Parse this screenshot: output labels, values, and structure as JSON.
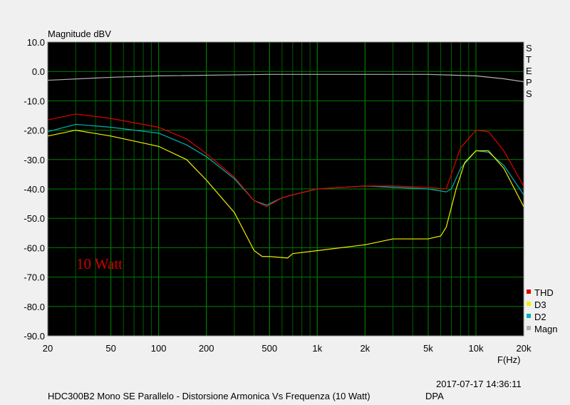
{
  "chart_data": {
    "type": "line",
    "y_label": "Magnitude dBV",
    "x_label": "F(Hz)",
    "side_label": "STEPS",
    "annotation": "10 Watt",
    "timestamp": "2017-07-17 14:36:11",
    "footer_title": "HDC300B2 Mono SE Parallelo - Distorsione Armonica Vs Frequenza (10 Watt)",
    "footer_right": "DPA",
    "x_scale": "log",
    "grid": true,
    "legend": "lower right",
    "xlim": [
      20,
      20000
    ],
    "ylim": [
      -90,
      10
    ],
    "xticks": [
      20,
      50,
      100,
      200,
      500,
      {
        "value": 1000,
        "label": "1k"
      },
      {
        "value": 2000,
        "label": "2k"
      },
      {
        "value": 5000,
        "label": "5k"
      },
      {
        "value": 10000,
        "label": "10k"
      },
      {
        "value": 20000,
        "label": "20k"
      }
    ],
    "yticks": [
      {
        "value": 10,
        "label": "10.0"
      },
      {
        "value": 0,
        "label": "0.0"
      },
      {
        "value": -10,
        "label": "-10.0"
      },
      {
        "value": -20,
        "label": "-20.0"
      },
      {
        "value": -30,
        "label": "-30.0"
      },
      {
        "value": -40,
        "label": "-40.0"
      },
      {
        "value": -50,
        "label": "-50.0"
      },
      {
        "value": -60,
        "label": "-60.0"
      },
      {
        "value": -70,
        "label": "-70.0"
      },
      {
        "value": -80,
        "label": "-80.0"
      },
      {
        "value": -90,
        "label": "-90.0"
      }
    ],
    "series": [
      {
        "name": "THD",
        "color": "#e00000",
        "x": [
          20,
          30,
          50,
          100,
          150,
          200,
          300,
          400,
          480,
          600,
          700,
          1000,
          2000,
          3000,
          5000,
          6500,
          8000,
          10000,
          12000,
          15000,
          20000
        ],
        "values": [
          -16.5,
          -14.5,
          -16,
          -19,
          -23,
          -28,
          -36,
          -44,
          -46,
          -43,
          -42,
          -40,
          -39,
          -39,
          -39.5,
          -40,
          -26,
          -20,
          -20.5,
          -27,
          -39
        ]
      },
      {
        "name": "D3",
        "color": "#f0f000",
        "x": [
          20,
          30,
          50,
          100,
          150,
          200,
          300,
          400,
          450,
          500,
          650,
          700,
          1000,
          2000,
          3000,
          5000,
          6000,
          6500,
          7500,
          8500,
          10000,
          12000,
          15000,
          20000
        ],
        "values": [
          -22,
          -20,
          -22,
          -25.5,
          -30,
          -37,
          -48,
          -61,
          -63,
          -63,
          -63.5,
          -62,
          -61,
          -59,
          -57,
          -57,
          -56,
          -53,
          -40,
          -31,
          -27,
          -27,
          -33,
          -46
        ]
      },
      {
        "name": "D2",
        "color": "#00b0b0",
        "x": [
          20,
          30,
          50,
          100,
          150,
          200,
          300,
          400,
          480,
          600,
          700,
          1000,
          2000,
          5000,
          6500,
          7000,
          8000,
          10000,
          12000,
          15000,
          20000
        ],
        "values": [
          -20.5,
          -18,
          -19,
          -21,
          -25,
          -29,
          -36.5,
          -44,
          -45.5,
          -43,
          -42,
          -40,
          -39,
          -40,
          -41,
          -40,
          -33,
          -27,
          -27.5,
          -32,
          -42
        ]
      },
      {
        "name": "Magn",
        "color": "#b0b0b0",
        "x": [
          20,
          50,
          100,
          500,
          5000,
          10000,
          15000,
          20000
        ],
        "values": [
          -3,
          -2,
          -1.5,
          -1,
          -1,
          -1.5,
          -2.5,
          -3.5
        ]
      }
    ]
  }
}
